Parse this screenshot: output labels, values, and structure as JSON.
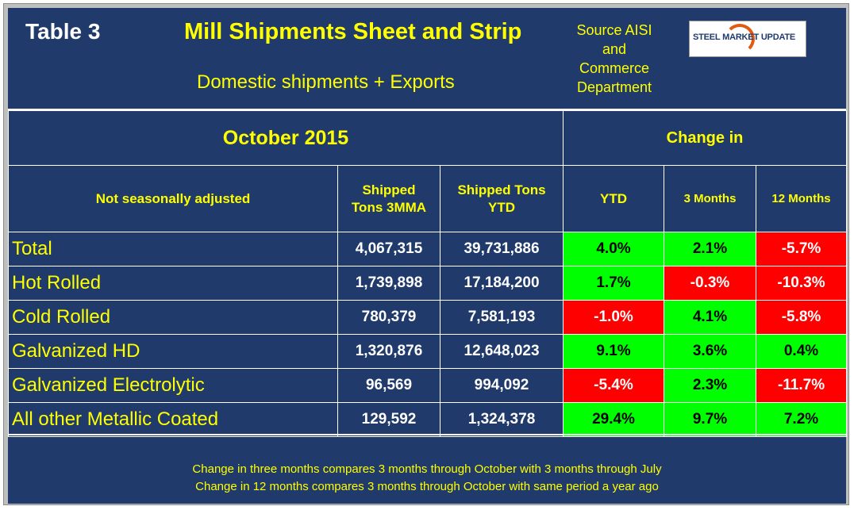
{
  "header": {
    "table_label": "Table 3",
    "title": "Mill Shipments Sheet and Strip",
    "subtitle": "Domestic shipments + Exports",
    "source_line1": "Source AISI",
    "source_line2": "and",
    "source_line3": "Commerce",
    "source_line4": "Department",
    "logo_text": "STEEL MARKET UPDATE"
  },
  "table": {
    "period": "October 2015",
    "change_in": "Change in",
    "columns": {
      "name": "Not seasonally adjusted",
      "tons_3mma_line1": "Shipped",
      "tons_3mma_line2": "Tons 3MMA",
      "tons_ytd_line1": "Shipped Tons",
      "tons_ytd_line2": "YTD",
      "change_ytd": "YTD",
      "change_3m": "3 Months",
      "change_12m": "12 Months"
    },
    "rows": [
      {
        "name": "Total",
        "tons_3mma": "4,067,315",
        "tons_ytd": "39,731,886",
        "ytd": "4.0%",
        "m3": "2.1%",
        "m12": "-5.7%"
      },
      {
        "name": "Hot Rolled",
        "tons_3mma": "1,739,898",
        "tons_ytd": "17,184,200",
        "ytd": "1.7%",
        "m3": "-0.3%",
        "m12": "-10.3%"
      },
      {
        "name": "Cold Rolled",
        "tons_3mma": "780,379",
        "tons_ytd": "7,581,193",
        "ytd": "-1.0%",
        "m3": "4.1%",
        "m12": "-5.8%"
      },
      {
        "name": "Galvanized HD",
        "tons_3mma": "1,320,876",
        "tons_ytd": "12,648,023",
        "ytd": "9.1%",
        "m3": "3.6%",
        "m12": "0.4%"
      },
      {
        "name": "Galvanized Electrolytic",
        "tons_3mma": "96,569",
        "tons_ytd": "994,092",
        "ytd": "-5.4%",
        "m3": "2.3%",
        "m12": "-11.7%"
      },
      {
        "name": "All other Metallic Coated",
        "tons_3mma": "129,592",
        "tons_ytd": "1,324,378",
        "ytd": "29.4%",
        "m3": "9.7%",
        "m12": "7.2%"
      }
    ]
  },
  "footer": {
    "note1": "Change in three months compares 3 months through October with 3 months through July",
    "note2": "Change in 12 months compares 3 months through October with same period a year ago"
  },
  "colors": {
    "panel": "#1f3a6b",
    "heading_text": "#ffff00",
    "positive": "#00ff00",
    "negative": "#ff0000"
  }
}
